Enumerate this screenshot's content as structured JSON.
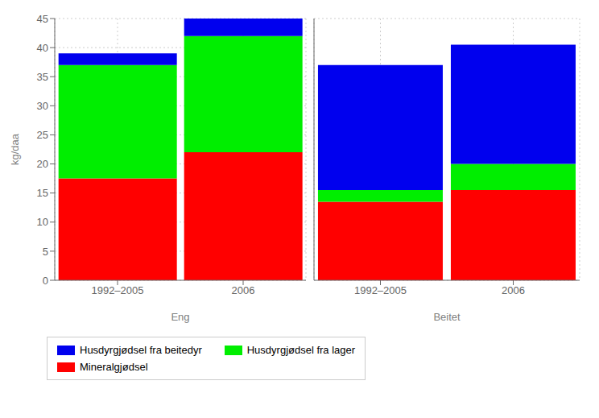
{
  "chart_data": [
    {
      "type": "bar",
      "stacked": true,
      "xlabel": "Eng",
      "ylabel": "kg/daa",
      "categories": [
        "1992–2005",
        "2006"
      ],
      "series": [
        {
          "name": "Mineralgjødsel",
          "color": "#FF0000",
          "values": [
            17.5,
            22.0
          ]
        },
        {
          "name": "Husdyrgjødsel fra lager",
          "color": "#00EE00",
          "values": [
            19.5,
            20.0
          ]
        },
        {
          "name": "Husdyrgjødsel fra beitedyr",
          "color": "#0000EE",
          "values": [
            2.0,
            3.0
          ]
        }
      ],
      "ylim": [
        0,
        45
      ],
      "yticks": [
        0,
        5,
        10,
        15,
        20,
        25,
        30,
        35,
        40,
        45
      ],
      "grid": true,
      "legend": "lower left"
    },
    {
      "type": "bar",
      "stacked": true,
      "xlabel": "Beitet",
      "categories": [
        "1992–2005",
        "2006"
      ],
      "series": [
        {
          "name": "Mineralgjødsel",
          "color": "#FF0000",
          "values": [
            13.5,
            15.5
          ]
        },
        {
          "name": "Husdyrgjødsel fra lager",
          "color": "#00EE00",
          "values": [
            2.0,
            4.5
          ]
        },
        {
          "name": "Husdyrgjødsel fra beitedyr",
          "color": "#0000EE",
          "values": [
            21.5,
            20.5
          ]
        }
      ],
      "ylim": [
        0,
        45
      ],
      "yticks": [
        0,
        5,
        10,
        15,
        20,
        25,
        30,
        35,
        40,
        45
      ],
      "grid": true,
      "tick_labels": "x"
    }
  ]
}
